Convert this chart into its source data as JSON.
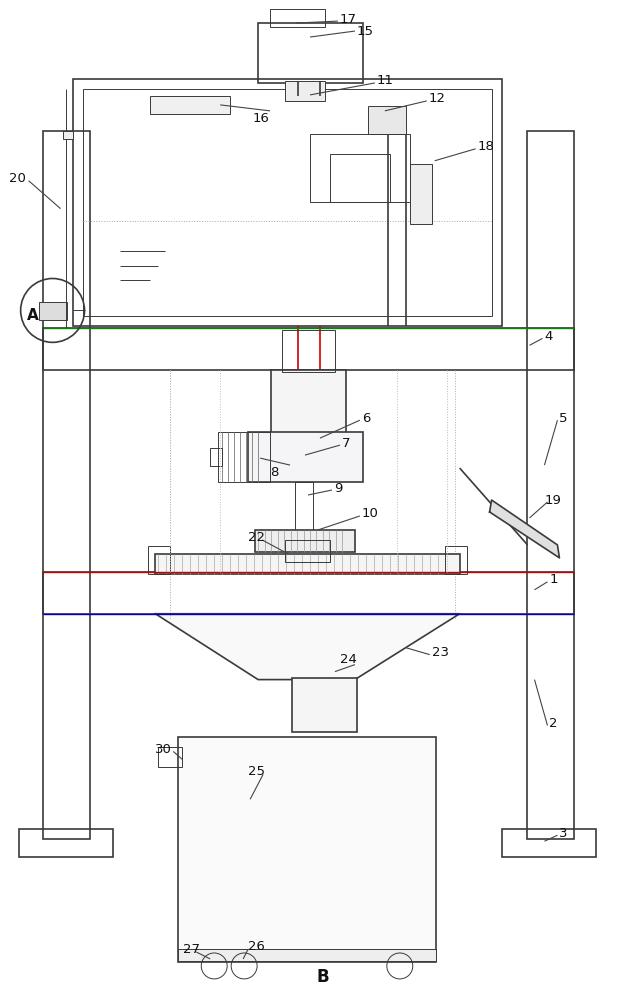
{
  "bg_color": "#ffffff",
  "lc": "#3a3a3a",
  "lw_main": 1.2,
  "lw_thin": 0.7,
  "fig_width": 6.17,
  "fig_height": 10.0
}
